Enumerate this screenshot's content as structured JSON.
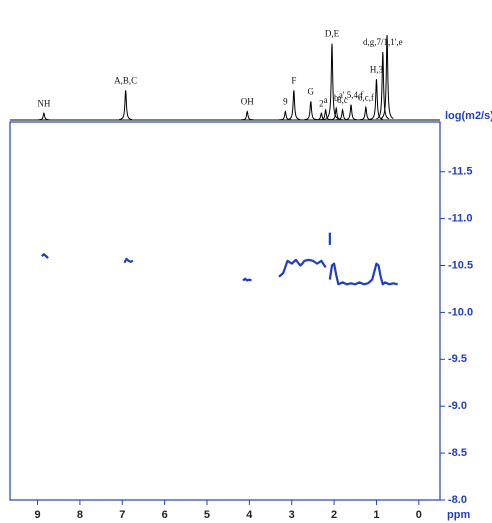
{
  "chart_data": {
    "type": "dosy",
    "y_label": "log(m2/s)",
    "x_label": "ppm",
    "xlim": [
      9.65,
      -0.5
    ],
    "xticks": [
      9,
      8,
      7,
      6,
      5,
      4,
      3,
      2,
      1,
      0
    ],
    "ylim": [
      -8,
      -12.03
    ],
    "yticks": [
      -11.5,
      {
        "value": -11,
        "label": "-11.0"
      },
      -10.5,
      {
        "value": -10,
        "label": "-10.0"
      },
      -9.5,
      {
        "value": -9,
        "label": "-9.0"
      },
      -8.5,
      {
        "value": -8,
        "label": "-8.0"
      }
    ],
    "spectrum_color": "#000000",
    "spectrum": {
      "ppm": [
        8.85,
        6.92,
        4.05,
        3.15,
        2.95,
        2.55,
        2.3,
        2.2,
        2.05,
        1.95,
        1.8,
        1.6,
        1.25,
        1.0,
        0.85,
        0.75
      ],
      "heights": [
        8,
        35,
        10,
        10,
        35,
        22,
        8,
        12,
        90,
        14,
        12,
        18,
        15,
        48,
        80,
        100
      ],
      "labels": [
        "NH",
        "A,B,C",
        "OH",
        "9",
        "F",
        "G",
        "2",
        "a",
        "D,E",
        "b",
        "8,c",
        "a',5,4,f",
        "6,c,f",
        "H,3",
        "d,g,7/1,1',e",
        null
      ]
    },
    "color": "#1f3fbf",
    "segments": [
      {
        "x": [
          8.9,
          8.85,
          8.8,
          8.75
        ],
        "y": [
          -10.6,
          -10.62,
          -10.6,
          -10.58
        ]
      },
      {
        "x": [
          6.95,
          6.9,
          6.85,
          6.8,
          6.75
        ],
        "y": [
          -10.53,
          -10.57,
          -10.55,
          -10.54,
          -10.55
        ]
      },
      {
        "x": [
          4.15,
          4.1,
          4.05,
          4.0,
          3.95
        ],
        "y": [
          -10.34,
          -10.36,
          -10.34,
          -10.35,
          -10.34
        ]
      },
      {
        "x": [
          3.3,
          3.2,
          3.1,
          3.0,
          2.9,
          2.8,
          2.75,
          2.7,
          2.6,
          2.5,
          2.4,
          2.3,
          2.2
        ],
        "y": [
          -10.38,
          -10.42,
          -10.55,
          -10.52,
          -10.56,
          -10.5,
          -10.52,
          -10.55,
          -10.56,
          -10.55,
          -10.52,
          -10.55,
          -10.48
        ]
      },
      {
        "x": [
          2.1,
          2.05,
          2.0,
          1.95,
          1.9,
          1.8,
          1.7,
          1.6,
          1.5,
          1.4,
          1.3,
          1.2,
          1.1,
          1.0,
          0.95,
          0.9,
          0.85,
          0.8,
          0.7,
          0.6,
          0.5
        ],
        "y": [
          -10.35,
          -10.5,
          -10.52,
          -10.4,
          -10.3,
          -10.32,
          -10.3,
          -10.31,
          -10.3,
          -10.32,
          -10.3,
          -10.31,
          -10.35,
          -10.52,
          -10.5,
          -10.38,
          -10.3,
          -10.32,
          -10.3,
          -10.31,
          -10.3
        ]
      },
      {
        "x": [
          2.1,
          2.1
        ],
        "y": [
          -10.72,
          -10.85
        ]
      }
    ]
  }
}
